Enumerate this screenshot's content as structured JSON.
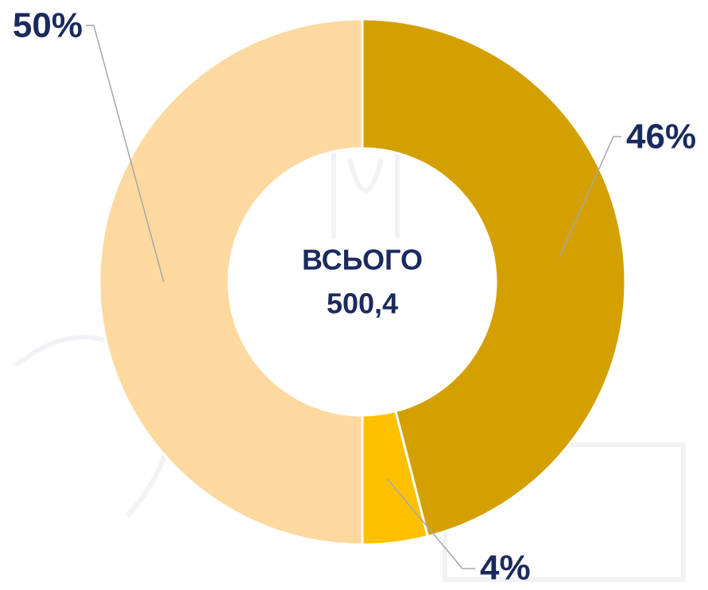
{
  "chart_data": {
    "type": "donut",
    "categories": null,
    "values": [
      46,
      4,
      50
    ],
    "value_labels": [
      "46%",
      "4%",
      "50%"
    ],
    "colors": [
      "#d4a000",
      "#ffc000",
      "#fdd9a0"
    ],
    "center_label": [
      "ВСЬОГО",
      "500,4"
    ]
  }
}
